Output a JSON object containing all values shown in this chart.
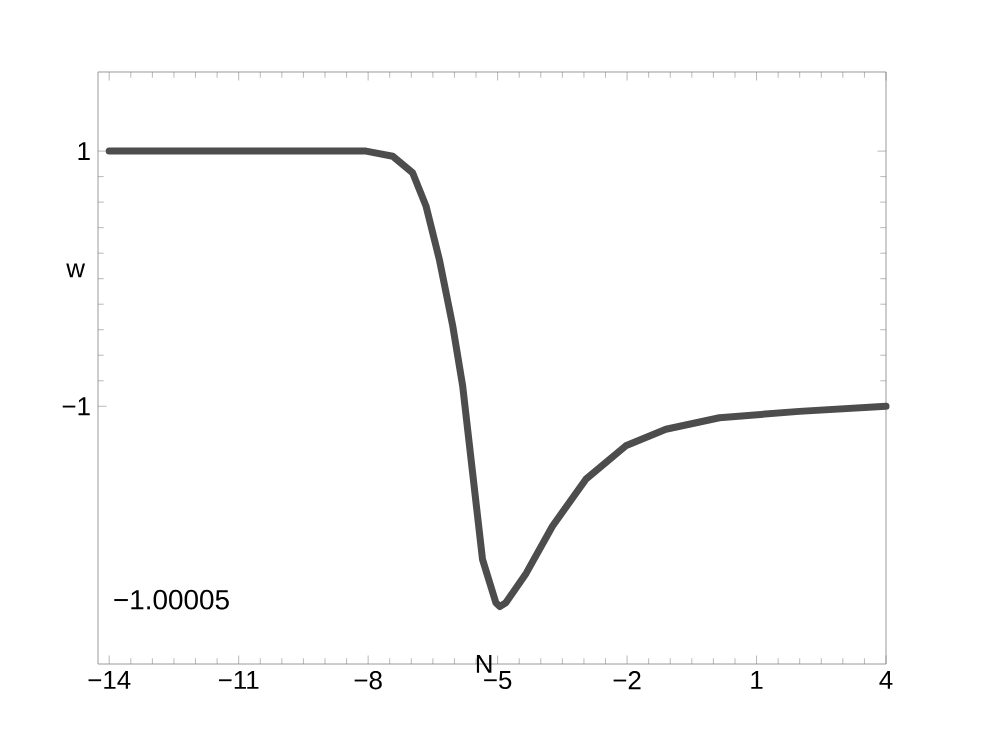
{
  "chart_data": {
    "type": "line",
    "xlabel": "N",
    "ylabel": "w",
    "xlim": [
      -14.26,
      4
    ],
    "ylim": [
      -3.02,
      1.62
    ],
    "xticks": [
      {
        "value": -14,
        "label": "−14"
      },
      {
        "value": -11,
        "label": "−11"
      },
      {
        "value": -8,
        "label": "−8"
      },
      {
        "value": -5,
        "label": "−5"
      },
      {
        "value": -2,
        "label": "−2"
      },
      1,
      4
    ],
    "yticks": [
      {
        "value": -1,
        "label": "−1"
      },
      1
    ],
    "series": [
      {
        "color": "#4d4d4d",
        "x": [
          -14,
          -11,
          -8.05,
          -7.43,
          -6.97,
          -6.66,
          -6.35,
          -6.04,
          -5.81,
          -5.58,
          -5.35,
          -5.04,
          -4.95,
          -4.81,
          -4.34,
          -3.73,
          -2.95,
          -2.03,
          -1.1,
          0.14,
          1.99,
          4
        ],
        "values": [
          1,
          1,
          1,
          0.96,
          0.83,
          0.57,
          0.15,
          -0.37,
          -0.84,
          -1.52,
          -2.2,
          -2.54,
          -2.57,
          -2.54,
          -2.31,
          -1.94,
          -1.57,
          -1.31,
          -1.18,
          -1.09,
          -1.04,
          -1.0
        ]
      }
    ],
    "annotations": [
      "−1.00005"
    ],
    "grid": false,
    "marker": "none",
    "line_style": "solid"
  }
}
